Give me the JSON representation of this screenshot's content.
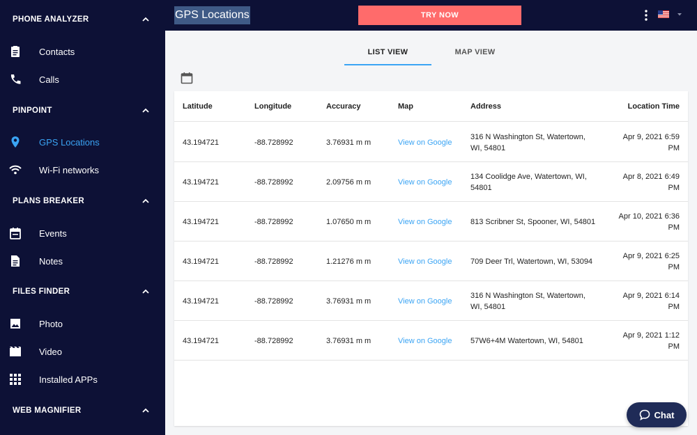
{
  "sidebar": {
    "sections": [
      {
        "title": "PHONE ANALYZER",
        "items": [
          {
            "label": "Contacts",
            "icon": "contacts-icon"
          },
          {
            "label": "Calls",
            "icon": "phone-icon"
          }
        ]
      },
      {
        "title": "PINPOINT",
        "items": [
          {
            "label": "GPS Locations",
            "icon": "location-pin-icon",
            "active": true
          },
          {
            "label": "Wi-Fi networks",
            "icon": "wifi-icon"
          }
        ]
      },
      {
        "title": "PLANS BREAKER",
        "items": [
          {
            "label": "Events",
            "icon": "calendar-icon"
          },
          {
            "label": "Notes",
            "icon": "note-icon"
          }
        ]
      },
      {
        "title": "FILES FINDER",
        "items": [
          {
            "label": "Photo",
            "icon": "photo-icon"
          },
          {
            "label": "Video",
            "icon": "video-icon"
          },
          {
            "label": "Installed APPs",
            "icon": "apps-grid-icon"
          }
        ]
      },
      {
        "title": "WEB MAGNIFIER",
        "items": []
      }
    ]
  },
  "topbar": {
    "title": "GPS Locations",
    "try_button": "TRY NOW"
  },
  "tabs": {
    "list": "LIST VIEW",
    "map": "MAP VIEW",
    "active": "list"
  },
  "table": {
    "headers": [
      "Latitude",
      "Longitude",
      "Accuracy",
      "Map",
      "Address",
      "Location Time"
    ],
    "rows": [
      {
        "lat": "43.194721",
        "lng": "-88.728992",
        "acc": "3.76931 m m",
        "map": "View on Google",
        "addr1": "316 N Washington St, Watertown,",
        "addr2": "WI, 54801",
        "time1": "Apr 9, 2021 6:59",
        "time2": "PM"
      },
      {
        "lat": "43.194721",
        "lng": "-88.728992",
        "acc": "2.09756 m m",
        "map": "View on Google",
        "addr1": "134 Coolidge Ave, Watertown, WI,",
        "addr2": "54801",
        "time1": "Apr 8, 2021 6:49",
        "time2": "PM"
      },
      {
        "lat": "43.194721",
        "lng": "-88.728992",
        "acc": "1.07650 m m",
        "map": "View on Google",
        "addr1": "813 Scribner St, Spooner, WI, 54801",
        "addr2": "",
        "time1": "Apr 10, 2021 6:36",
        "time2": "PM"
      },
      {
        "lat": "43.194721",
        "lng": "-88.728992",
        "acc": "1.21276 m m",
        "map": "View on Google",
        "addr1": "709 Deer Trl, Watertown, WI, 53094",
        "addr2": "",
        "time1": "Apr 9, 2021 6:25",
        "time2": "PM"
      },
      {
        "lat": "43.194721",
        "lng": "-88.728992",
        "acc": "3.76931 m m",
        "map": "View on Google",
        "addr1": "316 N Washington St, Watertown,",
        "addr2": "WI, 54801",
        "time1": "Apr 9, 2021 6:14",
        "time2": "PM"
      },
      {
        "lat": "43.194721",
        "lng": "-88.728992",
        "acc": "3.76931 m m",
        "map": "View on Google",
        "addr1": "57W6+4M Watertown, WI, 54801",
        "addr2": "",
        "time1": "Apr 9, 2021 1:12",
        "time2": "PM"
      }
    ]
  },
  "chat": {
    "label": "Chat"
  },
  "colors": {
    "sidebar_bg": "#0d1136",
    "accent": "#3aa4f4",
    "try_button": "#ff6b6b",
    "chat_button": "#1f2b57"
  }
}
